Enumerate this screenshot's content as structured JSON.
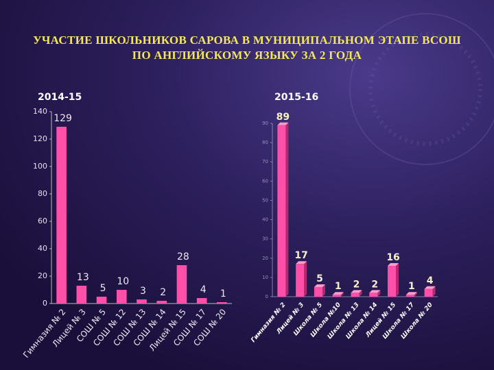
{
  "title": "УЧАСТИЕ ШКОЛЬНИКОВ  САРОВА В МУНИЦИПАЛЬНОМ ЭТАПЕ ВСОШ ПО АНГЛИЙСКОМУ ЯЗЫКУ ЗА 2 ГОДА",
  "chart_data": [
    {
      "type": "bar",
      "title": "2014-15",
      "categories": [
        "Гимназия № 2",
        "Лицей № 3",
        "СОШ № 5",
        "СОШ № 12",
        "СОШ № 13",
        "СОШ № 14",
        "Лицей № 15",
        "СОШ № 17",
        "СОШ № 20"
      ],
      "values": [
        129,
        13,
        5,
        10,
        3,
        2,
        28,
        4,
        1
      ],
      "color": "#ff4fa8",
      "ylim": [
        0,
        140
      ],
      "yticks": [
        0,
        20,
        40,
        60,
        80,
        100,
        120,
        140
      ]
    },
    {
      "type": "bar3d",
      "title": "2015-16",
      "categories": [
        "Гимназия № 2",
        "Лицей № 3",
        "Школа № 5",
        "Школа №10",
        "Школа № 13",
        "Школа № 14",
        "Лицей № 15",
        "Школа № 17",
        "Школа № 20"
      ],
      "values": [
        89,
        17,
        5,
        1,
        2,
        2,
        16,
        1,
        4
      ],
      "color": "#ff4fa8",
      "ylim": [
        0,
        90
      ],
      "yticks": [
        0,
        10,
        20,
        30,
        40,
        50,
        60,
        70,
        80,
        90
      ]
    }
  ]
}
